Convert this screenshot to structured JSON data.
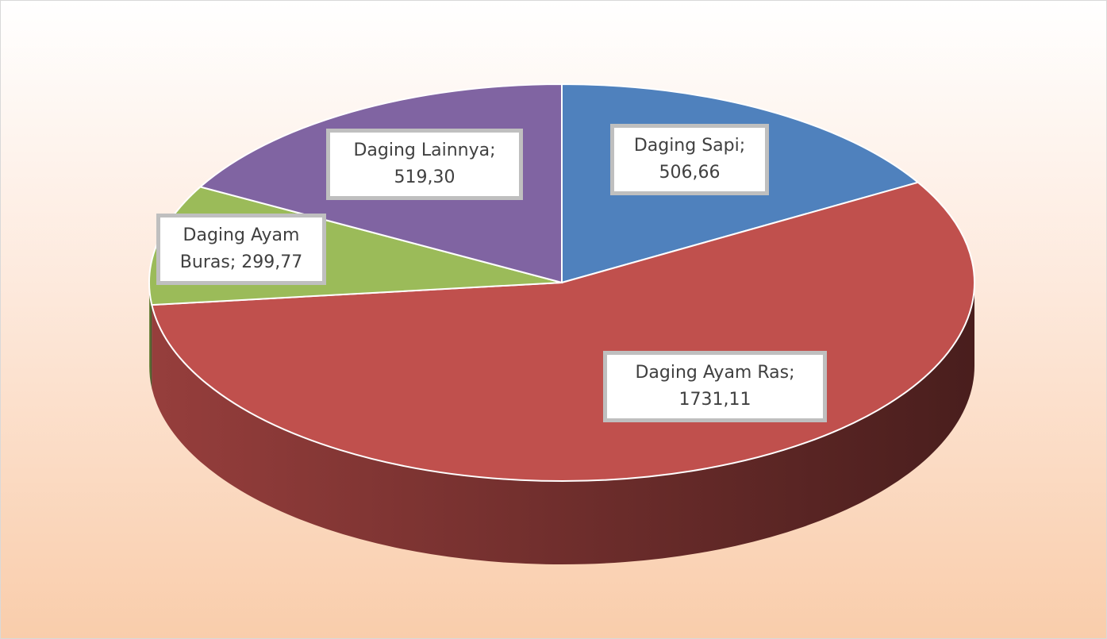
{
  "chart_data": {
    "type": "pie",
    "categories": [
      "Daging Sapi",
      "Daging Ayam Ras",
      "Daging Ayam Buras",
      "Daging Lainnya"
    ],
    "values": [
      506.66,
      1731.11,
      299.77,
      519.3
    ],
    "value_labels": [
      "506,66",
      "1731,11",
      "299,77",
      "519,30"
    ],
    "label_separator": ";",
    "colors": [
      "#4f81bd",
      "#c0504d",
      "#9bbb59",
      "#8064a2"
    ]
  }
}
